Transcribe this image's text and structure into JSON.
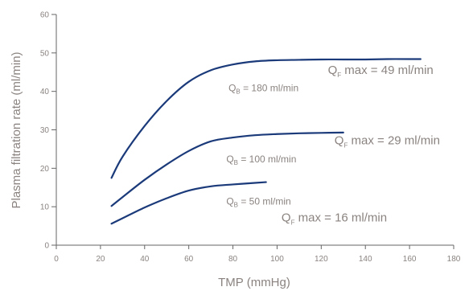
{
  "chart_data": {
    "type": "line",
    "xlabel": "TMP (mmHg)",
    "ylabel": "Plasma filtration rate (ml/min)",
    "xlim": [
      0,
      180
    ],
    "ylim": [
      0,
      60
    ],
    "xticks": [
      0,
      20,
      40,
      60,
      80,
      100,
      120,
      140,
      160,
      180
    ],
    "yticks": [
      0,
      10,
      20,
      30,
      40,
      50,
      60
    ],
    "grid": false,
    "line_color": "#1b3a7a",
    "text_color": "#8a8380",
    "series": [
      {
        "x": [
          25,
          30,
          40,
          50,
          60,
          70,
          80,
          90,
          100,
          110,
          120,
          130,
          140,
          150,
          160,
          165
        ],
        "y": [
          17.5,
          23,
          31,
          37.5,
          42.5,
          45.5,
          47,
          47.8,
          48.1,
          48.2,
          48.3,
          48.3,
          48.3,
          48.4,
          48.4,
          48.4
        ]
      },
      {
        "x": [
          25,
          30,
          40,
          50,
          60,
          70,
          80,
          90,
          100,
          110,
          120,
          130
        ],
        "y": [
          10.2,
          12.5,
          17,
          21,
          24.5,
          27,
          28,
          28.6,
          28.9,
          29.1,
          29.2,
          29.3
        ]
      },
      {
        "x": [
          25,
          30,
          40,
          50,
          60,
          70,
          80,
          90,
          95
        ],
        "y": [
          5.6,
          7,
          9.8,
          12.2,
          14.2,
          15.3,
          15.8,
          16.2,
          16.4
        ]
      }
    ],
    "annotations": [
      {
        "prefix": "Q",
        "sub": "B",
        "text": " = 180 ml/min",
        "x": 78,
        "y": 40,
        "size": "small"
      },
      {
        "prefix": "Q",
        "sub": "F",
        "text": " max = 49 ml/min",
        "x": 123,
        "y": 44.5,
        "size": "large"
      },
      {
        "prefix": "Q",
        "sub": "B",
        "text": " = 100 ml/min",
        "x": 77,
        "y": 21.5,
        "size": "small"
      },
      {
        "prefix": "Q",
        "sub": "F",
        "text": " max = 29 ml/min",
        "x": 126,
        "y": 26.2,
        "size": "large"
      },
      {
        "prefix": "Q",
        "sub": "B",
        "text": " = 50 ml/min",
        "x": 77,
        "y": 10.6,
        "size": "small"
      },
      {
        "prefix": "Q",
        "sub": "F",
        "text": " max = 16 ml/min",
        "x": 102,
        "y": 6.2,
        "size": "large"
      }
    ]
  }
}
